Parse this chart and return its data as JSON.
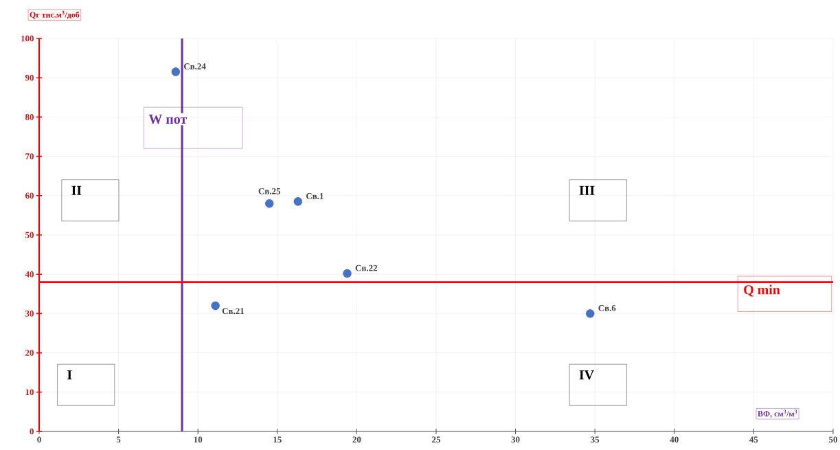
{
  "chart_data": {
    "type": "scatter",
    "xlabel": "ВФ, см$^{3}$/м$^{3}$",
    "ylabel": "Qг тис.м$^{3}$/доб",
    "x": [
      8.6,
      14.5,
      16.3,
      19.4,
      11.1,
      34.7
    ],
    "values": [
      91.5,
      58.0,
      58.5,
      40.2,
      32.0,
      30.0
    ],
    "color": "#4472c4",
    "marker": "circle",
    "xlim": [
      0,
      50
    ],
    "ylim": [
      0,
      100
    ],
    "xticks": [
      0,
      5,
      10,
      15,
      20,
      25,
      30,
      35,
      40,
      45,
      50
    ],
    "yticks": [
      0,
      10,
      20,
      30,
      40,
      50,
      60,
      70,
      80,
      90,
      100
    ],
    "grid": true,
    "ref_lines": [
      {
        "axis": "x",
        "value": 9,
        "label": "W пот",
        "color": "#7030a0"
      },
      {
        "axis": "y",
        "value": 38,
        "label": "Q min",
        "color": "#ff0000"
      }
    ],
    "annotations": [
      {
        "text": "Св.24",
        "x": 8.6,
        "y": 91.5
      },
      {
        "text": "Св.25",
        "x": 14.5,
        "y": 58.0
      },
      {
        "text": "Св.1",
        "x": 16.3,
        "y": 58.5
      },
      {
        "text": "Св.22",
        "x": 19.4,
        "y": 40.2
      },
      {
        "text": "Св.21",
        "x": 11.1,
        "y": 32.0
      },
      {
        "text": "Св.6",
        "x": 34.7,
        "y": 30.0
      },
      "I",
      "II",
      "III",
      "IV"
    ]
  }
}
